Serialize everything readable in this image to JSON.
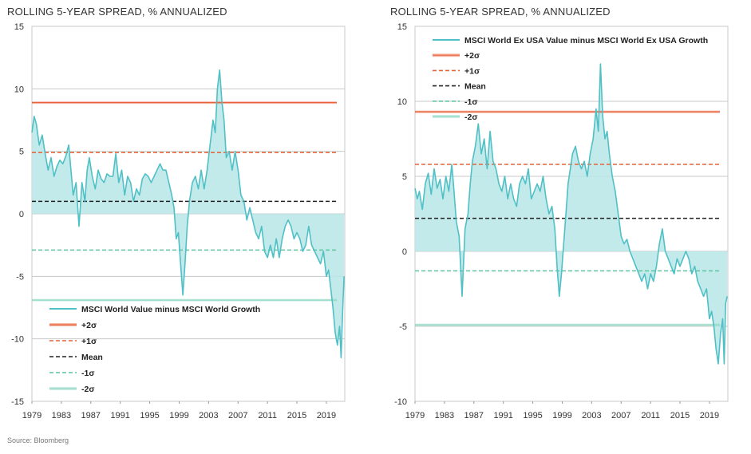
{
  "source": "Source: Bloomberg",
  "colors": {
    "series": "#4fc0c6",
    "fill": "#b9e6e8",
    "plus2": "#e8623a",
    "plus1": "#e8623a",
    "mean": "#222222",
    "minus1": "#5cc4a0",
    "minus2": "#8fd9c4",
    "grid": "#c8c8c8"
  },
  "chart_data": [
    {
      "type": "area",
      "title": "ROLLING 5-YEAR SPREAD, % ANNUALIZED",
      "ylim": [
        -15,
        15
      ],
      "xlim": [
        1979,
        2021.5
      ],
      "yticks": [
        "15",
        "10",
        "5",
        "0",
        "-5",
        "-10",
        "-15"
      ],
      "xticks": [
        "1979",
        "1983",
        "1987",
        "1991",
        "1995",
        "1999",
        "2003",
        "2007",
        "2011",
        "2015",
        "2019"
      ],
      "legend_position": "bottom-left",
      "series_label": "MSCI World Value minus MSCI World Growth",
      "reference_lines": [
        {
          "label": "+2σ",
          "value": 8.9,
          "style": "double"
        },
        {
          "label": "+1σ",
          "value": 4.9,
          "style": "dashed"
        },
        {
          "label": "Mean",
          "value": 1.0,
          "style": "dashed"
        },
        {
          "label": "-1σ",
          "value": -2.9,
          "style": "dashed"
        },
        {
          "label": "-2σ",
          "value": -6.9,
          "style": "double"
        }
      ],
      "x": [
        1979.0,
        1979.3,
        1979.6,
        1980.0,
        1980.4,
        1980.8,
        1981.2,
        1981.6,
        1982.0,
        1982.4,
        1982.8,
        1983.2,
        1983.6,
        1984.0,
        1984.3,
        1984.6,
        1985.0,
        1985.4,
        1985.8,
        1986.2,
        1986.5,
        1986.8,
        1987.2,
        1987.6,
        1988.0,
        1988.4,
        1988.8,
        1989.2,
        1989.6,
        1990.0,
        1990.4,
        1990.8,
        1991.2,
        1991.6,
        1992.0,
        1992.4,
        1992.8,
        1993.2,
        1993.6,
        1994.0,
        1994.4,
        1994.8,
        1995.2,
        1995.6,
        1996.0,
        1996.4,
        1996.8,
        1997.2,
        1997.6,
        1998.0,
        1998.3,
        1998.6,
        1998.9,
        1999.2,
        1999.5,
        1999.8,
        2000.1,
        2000.4,
        2000.8,
        2001.2,
        2001.6,
        2002.0,
        2002.4,
        2002.8,
        2003.2,
        2003.6,
        2003.9,
        2004.2,
        2004.5,
        2004.8,
        2005.1,
        2005.4,
        2005.8,
        2006.2,
        2006.6,
        2007.0,
        2007.4,
        2007.8,
        2008.2,
        2008.6,
        2009.0,
        2009.4,
        2009.8,
        2010.2,
        2010.6,
        2011.0,
        2011.4,
        2011.8,
        2012.2,
        2012.6,
        2013.0,
        2013.4,
        2013.8,
        2014.2,
        2014.6,
        2015.0,
        2015.4,
        2015.8,
        2016.2,
        2016.6,
        2017.0,
        2017.4,
        2017.8,
        2018.2,
        2018.6,
        2019.0,
        2019.3,
        2019.6,
        2019.9,
        2020.2,
        2020.5,
        2020.8,
        2021.0,
        2021.2,
        2021.4
      ],
      "values": [
        6.5,
        7.8,
        7.2,
        5.5,
        6.3,
        4.8,
        3.5,
        4.5,
        3.0,
        3.8,
        4.3,
        4.0,
        4.6,
        5.5,
        3.5,
        1.5,
        2.5,
        -1.0,
        2.5,
        1.0,
        3.5,
        4.5,
        3.0,
        2.0,
        3.5,
        2.8,
        2.5,
        3.2,
        3.0,
        3.0,
        4.8,
        2.5,
        3.5,
        1.5,
        3.0,
        2.5,
        1.0,
        2.0,
        1.5,
        2.8,
        3.2,
        3.0,
        2.5,
        3.0,
        3.5,
        4.0,
        3.5,
        3.5,
        2.5,
        1.5,
        0.5,
        -2.0,
        -1.5,
        -4.0,
        -6.5,
        -4.0,
        -1.0,
        1.0,
        2.5,
        3.0,
        2.0,
        3.5,
        2.0,
        3.5,
        5.5,
        7.5,
        6.5,
        10.0,
        11.5,
        9.0,
        7.5,
        4.5,
        5.0,
        3.5,
        5.0,
        3.5,
        1.5,
        1.0,
        -0.5,
        0.5,
        -0.5,
        -1.5,
        -2.0,
        -1.0,
        -3.0,
        -3.5,
        -2.5,
        -3.5,
        -2.0,
        -3.5,
        -2.0,
        -1.0,
        -0.5,
        -1.0,
        -2.0,
        -1.5,
        -2.0,
        -3.0,
        -2.5,
        -1.0,
        -2.5,
        -3.0,
        -3.5,
        -4.0,
        -3.0,
        -5.0,
        -4.5,
        -6.0,
        -7.5,
        -9.5,
        -10.5,
        -9.0,
        -11.5,
        -8.0,
        -5.0
      ]
    },
    {
      "type": "area",
      "title": "ROLLING 5-YEAR SPREAD, % ANNUALIZED",
      "ylim": [
        -10,
        15
      ],
      "xlim": [
        1979,
        2021.5
      ],
      "yticks": [
        "15",
        "10",
        "5",
        "0",
        "-5",
        "-10"
      ],
      "xticks": [
        "1979",
        "1983",
        "1987",
        "1991",
        "1995",
        "1999",
        "2003",
        "2007",
        "2011",
        "2015",
        "2019"
      ],
      "legend_position": "top-left",
      "series_label": "MSCI World Ex USA Value minus MSCI World Ex USA Growth",
      "reference_lines": [
        {
          "label": "+2σ",
          "value": 9.3,
          "style": "double"
        },
        {
          "label": "+1σ",
          "value": 5.8,
          "style": "dashed"
        },
        {
          "label": "Mean",
          "value": 2.2,
          "style": "dashed"
        },
        {
          "label": "-1σ",
          "value": -1.3,
          "style": "dashed"
        },
        {
          "label": "-2σ",
          "value": -4.9,
          "style": "double"
        }
      ],
      "x": [
        1979.0,
        1979.3,
        1979.6,
        1980.0,
        1980.4,
        1980.8,
        1981.2,
        1981.6,
        1982.0,
        1982.4,
        1982.8,
        1983.2,
        1983.6,
        1984.0,
        1984.3,
        1984.6,
        1985.0,
        1985.4,
        1985.8,
        1986.2,
        1986.5,
        1986.8,
        1987.2,
        1987.6,
        1988.0,
        1988.4,
        1988.8,
        1989.2,
        1989.6,
        1990.0,
        1990.4,
        1990.8,
        1991.2,
        1991.6,
        1992.0,
        1992.4,
        1992.8,
        1993.2,
        1993.6,
        1994.0,
        1994.4,
        1994.8,
        1995.2,
        1995.6,
        1996.0,
        1996.4,
        1996.8,
        1997.2,
        1997.6,
        1998.0,
        1998.3,
        1998.6,
        1998.9,
        1999.2,
        1999.5,
        1999.8,
        2000.1,
        2000.4,
        2000.8,
        2001.2,
        2001.6,
        2002.0,
        2002.4,
        2002.8,
        2003.2,
        2003.6,
        2003.9,
        2004.2,
        2004.5,
        2004.8,
        2005.1,
        2005.4,
        2005.8,
        2006.2,
        2006.6,
        2007.0,
        2007.4,
        2007.8,
        2008.2,
        2008.6,
        2009.0,
        2009.4,
        2009.8,
        2010.2,
        2010.6,
        2011.0,
        2011.4,
        2011.8,
        2012.2,
        2012.6,
        2013.0,
        2013.4,
        2013.8,
        2014.2,
        2014.6,
        2015.0,
        2015.4,
        2015.8,
        2016.2,
        2016.6,
        2017.0,
        2017.4,
        2017.8,
        2018.2,
        2018.6,
        2019.0,
        2019.3,
        2019.6,
        2019.9,
        2020.2,
        2020.5,
        2020.8,
        2021.0,
        2021.2,
        2021.4
      ],
      "values": [
        4.2,
        3.5,
        4.0,
        2.8,
        4.5,
        5.2,
        3.8,
        5.5,
        4.2,
        4.8,
        3.5,
        5.0,
        4.0,
        5.8,
        4.0,
        2.0,
        1.0,
        -3.0,
        1.5,
        2.5,
        4.5,
        6.0,
        7.0,
        8.5,
        6.5,
        7.5,
        5.5,
        8.0,
        6.0,
        5.5,
        4.5,
        4.0,
        5.0,
        3.5,
        4.5,
        3.5,
        3.0,
        4.5,
        5.0,
        4.5,
        5.5,
        3.5,
        4.0,
        4.5,
        4.0,
        5.0,
        3.5,
        2.5,
        3.0,
        1.5,
        -1.0,
        -3.0,
        -1.5,
        0.5,
        2.5,
        4.5,
        5.5,
        6.5,
        7.0,
        6.0,
        5.5,
        6.0,
        5.0,
        6.5,
        7.5,
        9.5,
        8.0,
        12.5,
        9.0,
        7.5,
        8.0,
        6.5,
        5.0,
        4.0,
        2.5,
        1.0,
        0.5,
        0.8,
        0.0,
        -0.5,
        -1.0,
        -1.5,
        -2.0,
        -1.5,
        -2.5,
        -1.5,
        -2.0,
        -1.0,
        0.5,
        1.5,
        0.0,
        -0.5,
        -1.0,
        -1.5,
        -0.5,
        -1.0,
        -0.5,
        0.0,
        -0.5,
        -1.5,
        -1.0,
        -2.0,
        -2.5,
        -3.0,
        -2.5,
        -4.5,
        -4.0,
        -5.0,
        -6.5,
        -7.5,
        -5.5,
        -4.5,
        -7.5,
        -3.5,
        -3.0
      ]
    }
  ]
}
